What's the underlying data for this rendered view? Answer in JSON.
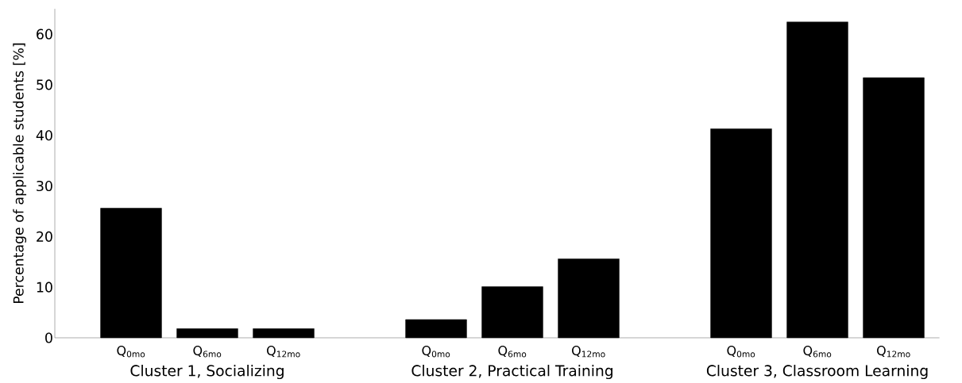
{
  "chart_data": {
    "type": "bar",
    "ylabel": "Percentage of applicable students [%]",
    "categories": [
      "Q$_{0mo}$",
      "Q$_{6mo}$",
      "Q$_{12mo}$",
      null,
      "Q$_{0mo}$",
      "Q$_{6mo}$",
      "Q$_{12mo}$",
      null,
      "Q$_{0mo}$",
      "Q$_{6mo}$",
      "Q$_{12mo}$"
    ],
    "values": [
      25.6,
      1.8,
      1.8,
      null,
      3.6,
      10.1,
      15.6,
      null,
      41.3,
      62.4,
      51.4
    ],
    "color": "#000000",
    "ylim": [
      0,
      65
    ],
    "yticks": [
      0,
      10,
      20,
      30,
      40,
      50,
      60
    ],
    "annotations": [
      "Cluster 1, Socializing",
      "Cluster 2, Practical Training",
      "Cluster 3, Classroom Learning"
    ]
  }
}
